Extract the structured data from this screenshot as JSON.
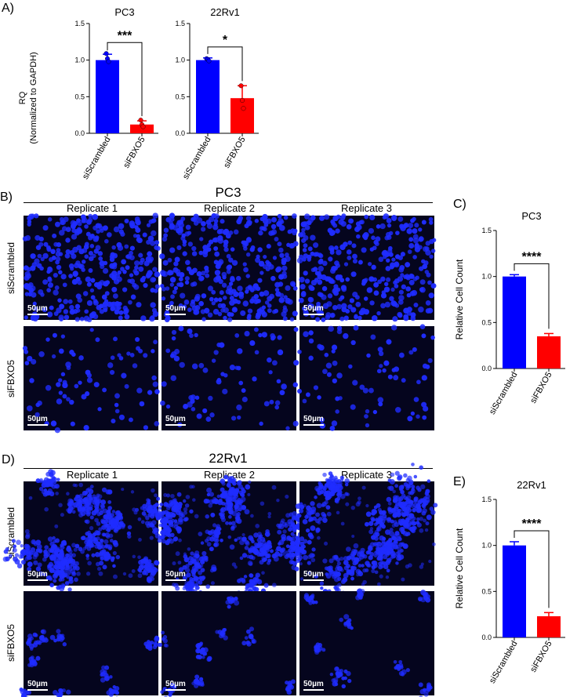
{
  "colors": {
    "scrambled": "#0000ff",
    "fbxo5": "#ff0000",
    "micrograph_bg": "#05051e",
    "nucleus": "#1f2cff",
    "scale_bar": "#ffffff"
  },
  "panel_labels": {
    "A": "A)",
    "B": "B)",
    "C": "C)",
    "D": "D)",
    "E": "E)"
  },
  "panel_A": {
    "ylabel_line1": "RQ",
    "ylabel_line2": "(Normalized to GAPDH)"
  },
  "panel_B": {
    "title": "PC3",
    "replicates": [
      "Replicate 1",
      "Replicate 2",
      "Replicate 3"
    ],
    "rows": [
      "siScrambled",
      "siFBXO5"
    ],
    "scale_bar": "50µm"
  },
  "panel_D": {
    "title": "22Rv1",
    "replicates": [
      "Replicate 1",
      "Replicate 2",
      "Replicate 3"
    ],
    "rows": [
      "siScrambled",
      "siFBXO5"
    ],
    "scale_bar": "50µm"
  },
  "chart_data": [
    {
      "id": "A-PC3",
      "type": "bar",
      "title": "PC3",
      "ylabel": "RQ (Normalized to GAPDH)",
      "categories": [
        "siScrambled",
        "siFBXO5"
      ],
      "values": [
        1.0,
        0.12
      ],
      "errors": [
        0.08,
        0.05
      ],
      "points": [
        [
          1.09,
          1.02,
          0.98
        ],
        [
          0.18,
          0.12,
          0.09
        ]
      ],
      "ylim": [
        0,
        1.5
      ],
      "yticks": [
        "0.0",
        "0.5",
        "1.0",
        "1.5"
      ],
      "significance": "***",
      "colors": [
        "#0000ff",
        "#ff0000"
      ]
    },
    {
      "id": "A-22Rv1",
      "type": "bar",
      "title": "22Rv1",
      "ylabel": "",
      "categories": [
        "siScrambled",
        "siFBXO5"
      ],
      "values": [
        1.0,
        0.48
      ],
      "errors": [
        0.03,
        0.17
      ],
      "points": [
        [
          1.02,
          1.01,
          0.99
        ],
        [
          0.65,
          0.45,
          0.34
        ]
      ],
      "ylim": [
        0,
        1.5
      ],
      "yticks": [
        "0.0",
        "0.5",
        "1.0",
        "1.5"
      ],
      "significance": "*",
      "colors": [
        "#0000ff",
        "#ff0000"
      ]
    },
    {
      "id": "C",
      "type": "bar",
      "title": "PC3",
      "ylabel": "Relative Cell Count",
      "categories": [
        "siScrambled",
        "siFBXO5"
      ],
      "values": [
        1.0,
        0.35
      ],
      "errors": [
        0.02,
        0.03
      ],
      "points": [],
      "ylim": [
        0,
        1.5
      ],
      "yticks": [
        "0.0",
        "0.5",
        "1.0",
        "1.5"
      ],
      "significance": "****",
      "colors": [
        "#0000ff",
        "#ff0000"
      ]
    },
    {
      "id": "E",
      "type": "bar",
      "title": "22Rv1",
      "ylabel": "Relative Cell Count",
      "categories": [
        "siScrambled",
        "siFBXO5"
      ],
      "values": [
        1.0,
        0.23
      ],
      "errors": [
        0.04,
        0.04
      ],
      "points": [],
      "ylim": [
        0,
        1.5
      ],
      "yticks": [
        "0.0",
        "0.5",
        "1.0",
        "1.5"
      ],
      "significance": "****",
      "colors": [
        "#0000ff",
        "#ff0000"
      ]
    }
  ]
}
